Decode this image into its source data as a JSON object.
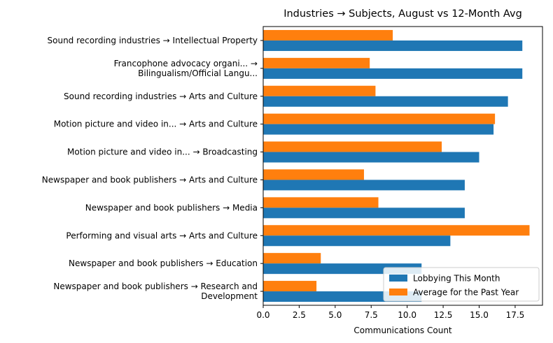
{
  "chart_data": {
    "type": "bar",
    "orientation": "horizontal",
    "title": "Industries → Subjects, August vs 12-Month Avg",
    "xlabel": "Communications Count",
    "ylabel": "",
    "xlim": [
      0,
      19.4
    ],
    "x_ticks": [
      "0.0",
      "2.5",
      "5.0",
      "7.5",
      "10.0",
      "12.5",
      "15.0",
      "17.5"
    ],
    "categories": [
      [
        "Sound recording industries → Intellectual Property"
      ],
      [
        "Francophone advocacy organi... →",
        "Bilingualism/Official Langu..."
      ],
      [
        "Sound recording industries → Arts and Culture"
      ],
      [
        "Motion picture and video in... → Arts and Culture"
      ],
      [
        "Motion picture and video in... → Broadcasting"
      ],
      [
        "Newspaper and book publishers → Arts and Culture"
      ],
      [
        "Newspaper and book publishers → Media"
      ],
      [
        "Performing and visual arts → Arts and Culture"
      ],
      [
        "Newspaper and book publishers → Education"
      ],
      [
        "Newspaper and book publishers → Research and",
        "Development"
      ]
    ],
    "series": [
      {
        "name": "Lobbying This Month",
        "color": "#1f77b4",
        "values": [
          18,
          18,
          17,
          16,
          15,
          14,
          14,
          13,
          11,
          11
        ]
      },
      {
        "name": "Average for the Past Year",
        "color": "#ff7f0e",
        "values": [
          9.0,
          7.4,
          7.8,
          16.1,
          12.4,
          7.0,
          8.0,
          18.5,
          4.0,
          3.7
        ]
      }
    ],
    "grid": false,
    "legend_position": "lower-right"
  }
}
